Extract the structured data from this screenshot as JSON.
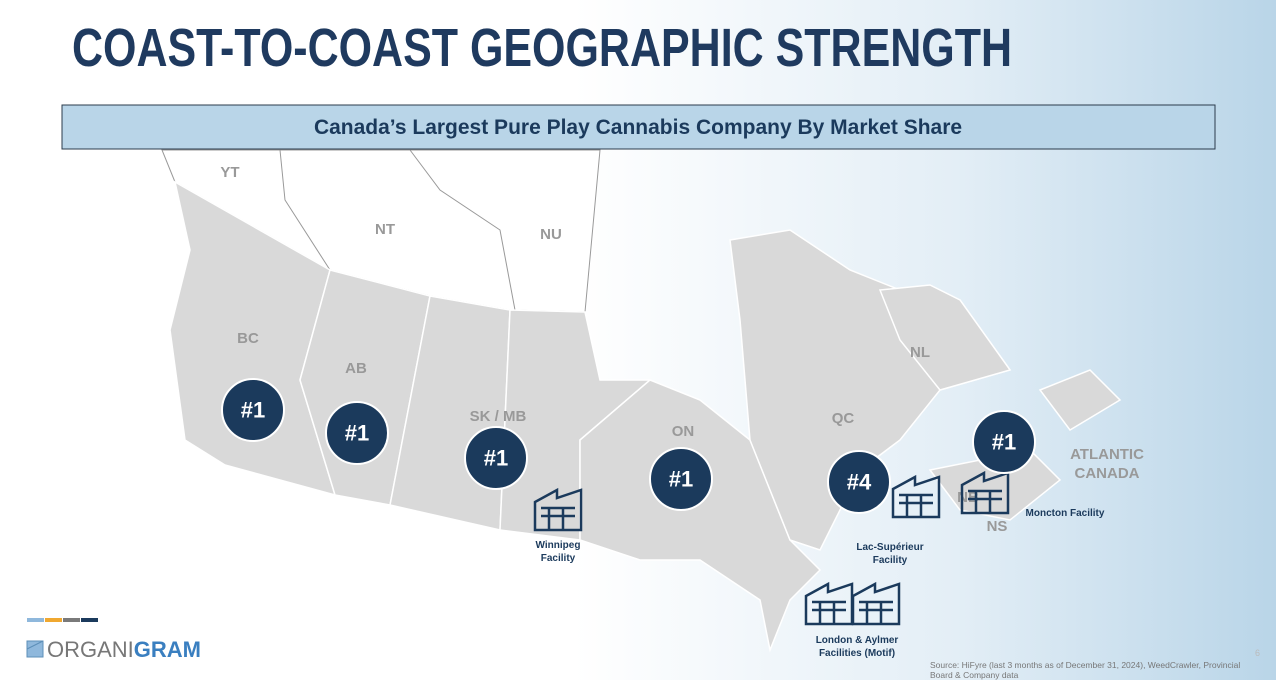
{
  "header": {
    "title": "COAST-TO-COAST GEOGRAPHIC STRENGTH",
    "subtitle": "Canada’s Largest Pure Play Cannabis Company By Market Share"
  },
  "regions": [
    "YT",
    "NT",
    "NU",
    "BC",
    "AB",
    "SK / MB",
    "ON",
    "QC",
    "NL",
    "NB",
    "NS",
    "ATLANTIC",
    "CANADA"
  ],
  "rankings": [
    "#1",
    "#1",
    "#1",
    "#1",
    "#4",
    "#1"
  ],
  "facilities": [
    [
      "Winnipeg",
      "Facility"
    ],
    [
      "Lac-Supérieur",
      "Facility"
    ],
    [
      "Moncton Facility"
    ],
    [
      "London & Aylmer",
      "Facilities (Motif)"
    ]
  ],
  "logo": {
    "part1": "ORGANI",
    "part2": "GRAM"
  },
  "source": [
    "Source: HiFyre (last 3 months as of December 31, 2024), WeedCrawler, Provincial",
    "Board & Company data"
  ],
  "page_number": "6"
}
